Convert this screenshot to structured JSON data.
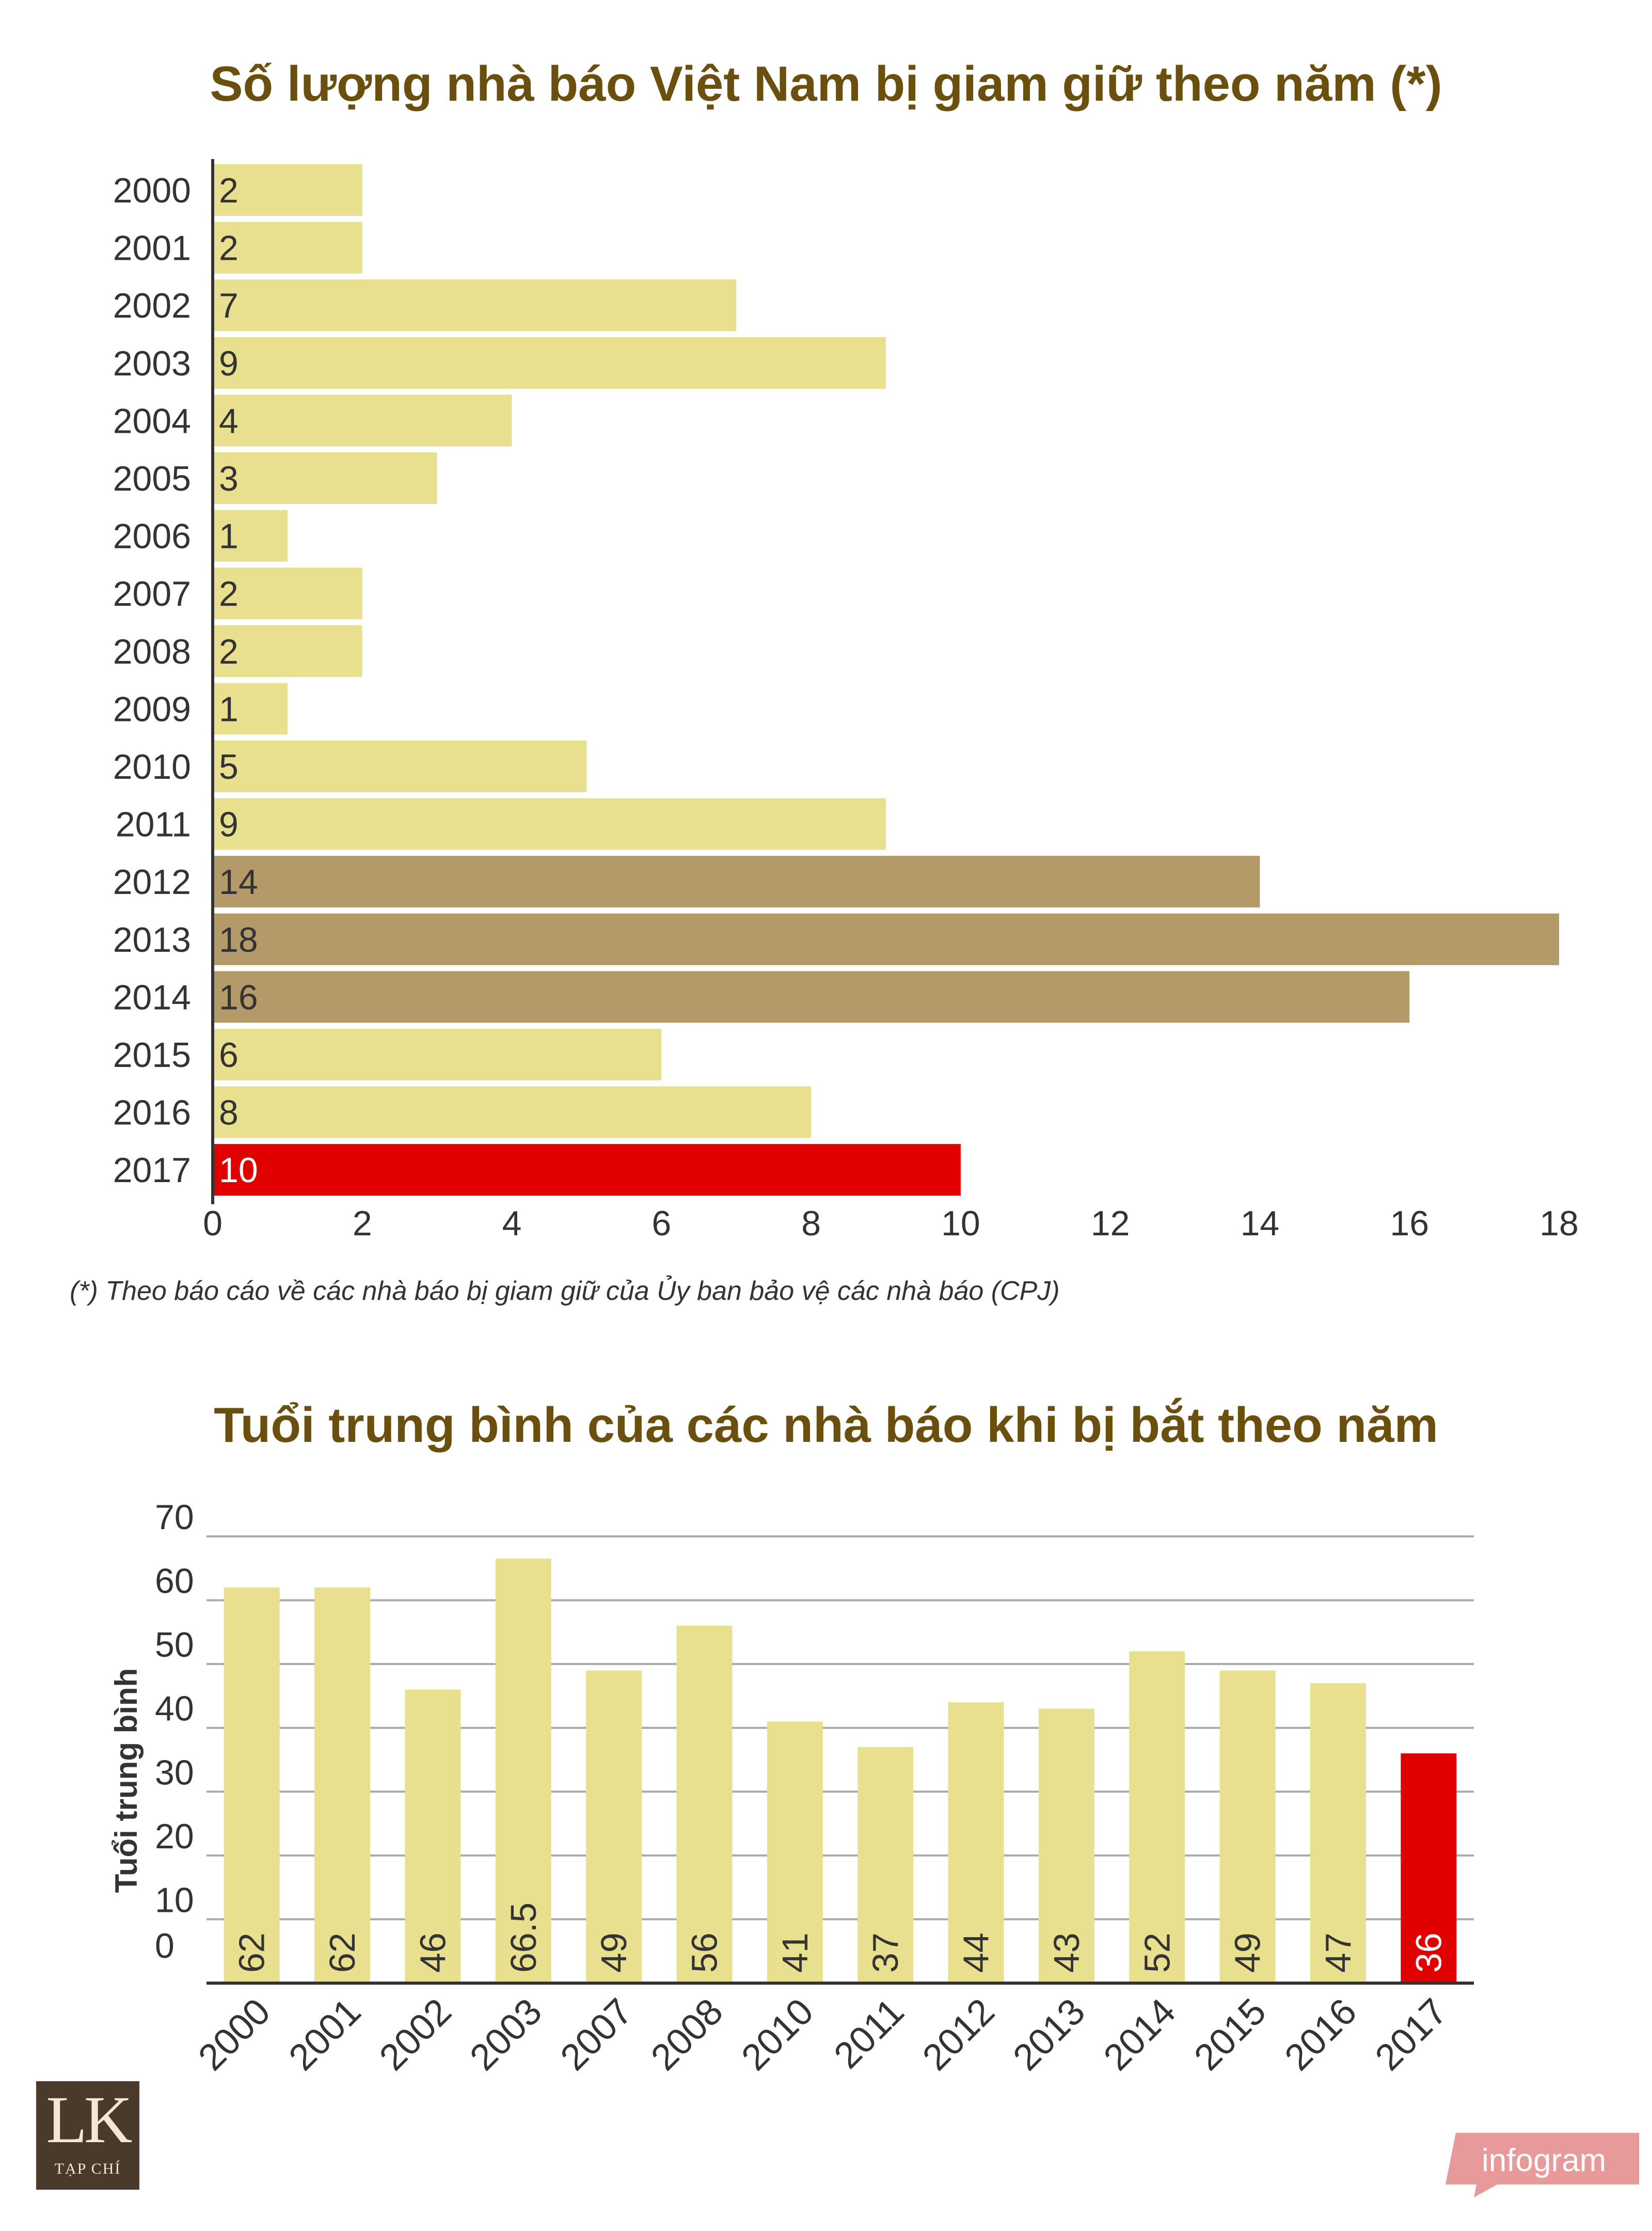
{
  "colors": {
    "title": "#6b4f0f",
    "bar_light": "#e8e08e",
    "bar_dark": "#b39a68",
    "bar_highlight": "#e00000",
    "axis": "#333333",
    "grid": "#aaaaaa",
    "text": "#333333"
  },
  "chart_data": [
    {
      "type": "bar",
      "orientation": "horizontal",
      "title": "Số lượng nhà báo Việt Nam bị giam giữ theo năm (*)",
      "categories": [
        "2000",
        "2001",
        "2002",
        "2003",
        "2004",
        "2005",
        "2006",
        "2007",
        "2008",
        "2009",
        "2010",
        "2011",
        "2012",
        "2013",
        "2014",
        "2015",
        "2016",
        "2017"
      ],
      "values": [
        2,
        2,
        7,
        9,
        4,
        3,
        1,
        2,
        2,
        1,
        5,
        9,
        14,
        18,
        16,
        6,
        8,
        10
      ],
      "bar_colors": [
        "#e8e08e",
        "#e8e08e",
        "#e8e08e",
        "#e8e08e",
        "#e8e08e",
        "#e8e08e",
        "#e8e08e",
        "#e8e08e",
        "#e8e08e",
        "#e8e08e",
        "#e8e08e",
        "#e8e08e",
        "#b39a68",
        "#b39a68",
        "#b39a68",
        "#e8e08e",
        "#e8e08e",
        "#e00000"
      ],
      "xlim": [
        0,
        18
      ],
      "xticks": [
        "0",
        "2",
        "4",
        "6",
        "8",
        "10",
        "12",
        "14",
        "16",
        "18"
      ],
      "footnote": "(*) Theo báo cáo về các nhà báo bị giam giữ của Ủy ban bảo vệ các nhà báo (CPJ)"
    },
    {
      "type": "bar",
      "orientation": "vertical",
      "title": "Tuổi trung bình của các nhà báo khi bị bắt theo năm",
      "ylabel": "Tuổi trung bình",
      "categories": [
        "2000",
        "2001",
        "2002",
        "2003",
        "2007",
        "2008",
        "2010",
        "2011",
        "2012",
        "2013",
        "2014",
        "2015",
        "2016",
        "2017"
      ],
      "values": [
        62,
        62,
        46,
        66.5,
        49,
        56,
        41,
        37,
        44,
        43,
        52,
        49,
        47,
        36
      ],
      "value_labels": [
        "62",
        "62",
        "46",
        "66.5",
        "49",
        "56",
        "41",
        "37",
        "44",
        "43",
        "52",
        "49",
        "47",
        "36"
      ],
      "bar_colors": [
        "#e8e08e",
        "#e8e08e",
        "#e8e08e",
        "#e8e08e",
        "#e8e08e",
        "#e8e08e",
        "#e8e08e",
        "#e8e08e",
        "#e8e08e",
        "#e8e08e",
        "#e8e08e",
        "#e8e08e",
        "#e8e08e",
        "#e00000"
      ],
      "ylim": [
        0,
        70
      ],
      "yticks": [
        "0",
        "10",
        "20",
        "30",
        "40",
        "50",
        "60",
        "70"
      ],
      "grid": true
    }
  ],
  "footer": {
    "logo_letters": "LK",
    "logo_subtitle": "TẠP CHÍ",
    "brand": "infogram"
  }
}
